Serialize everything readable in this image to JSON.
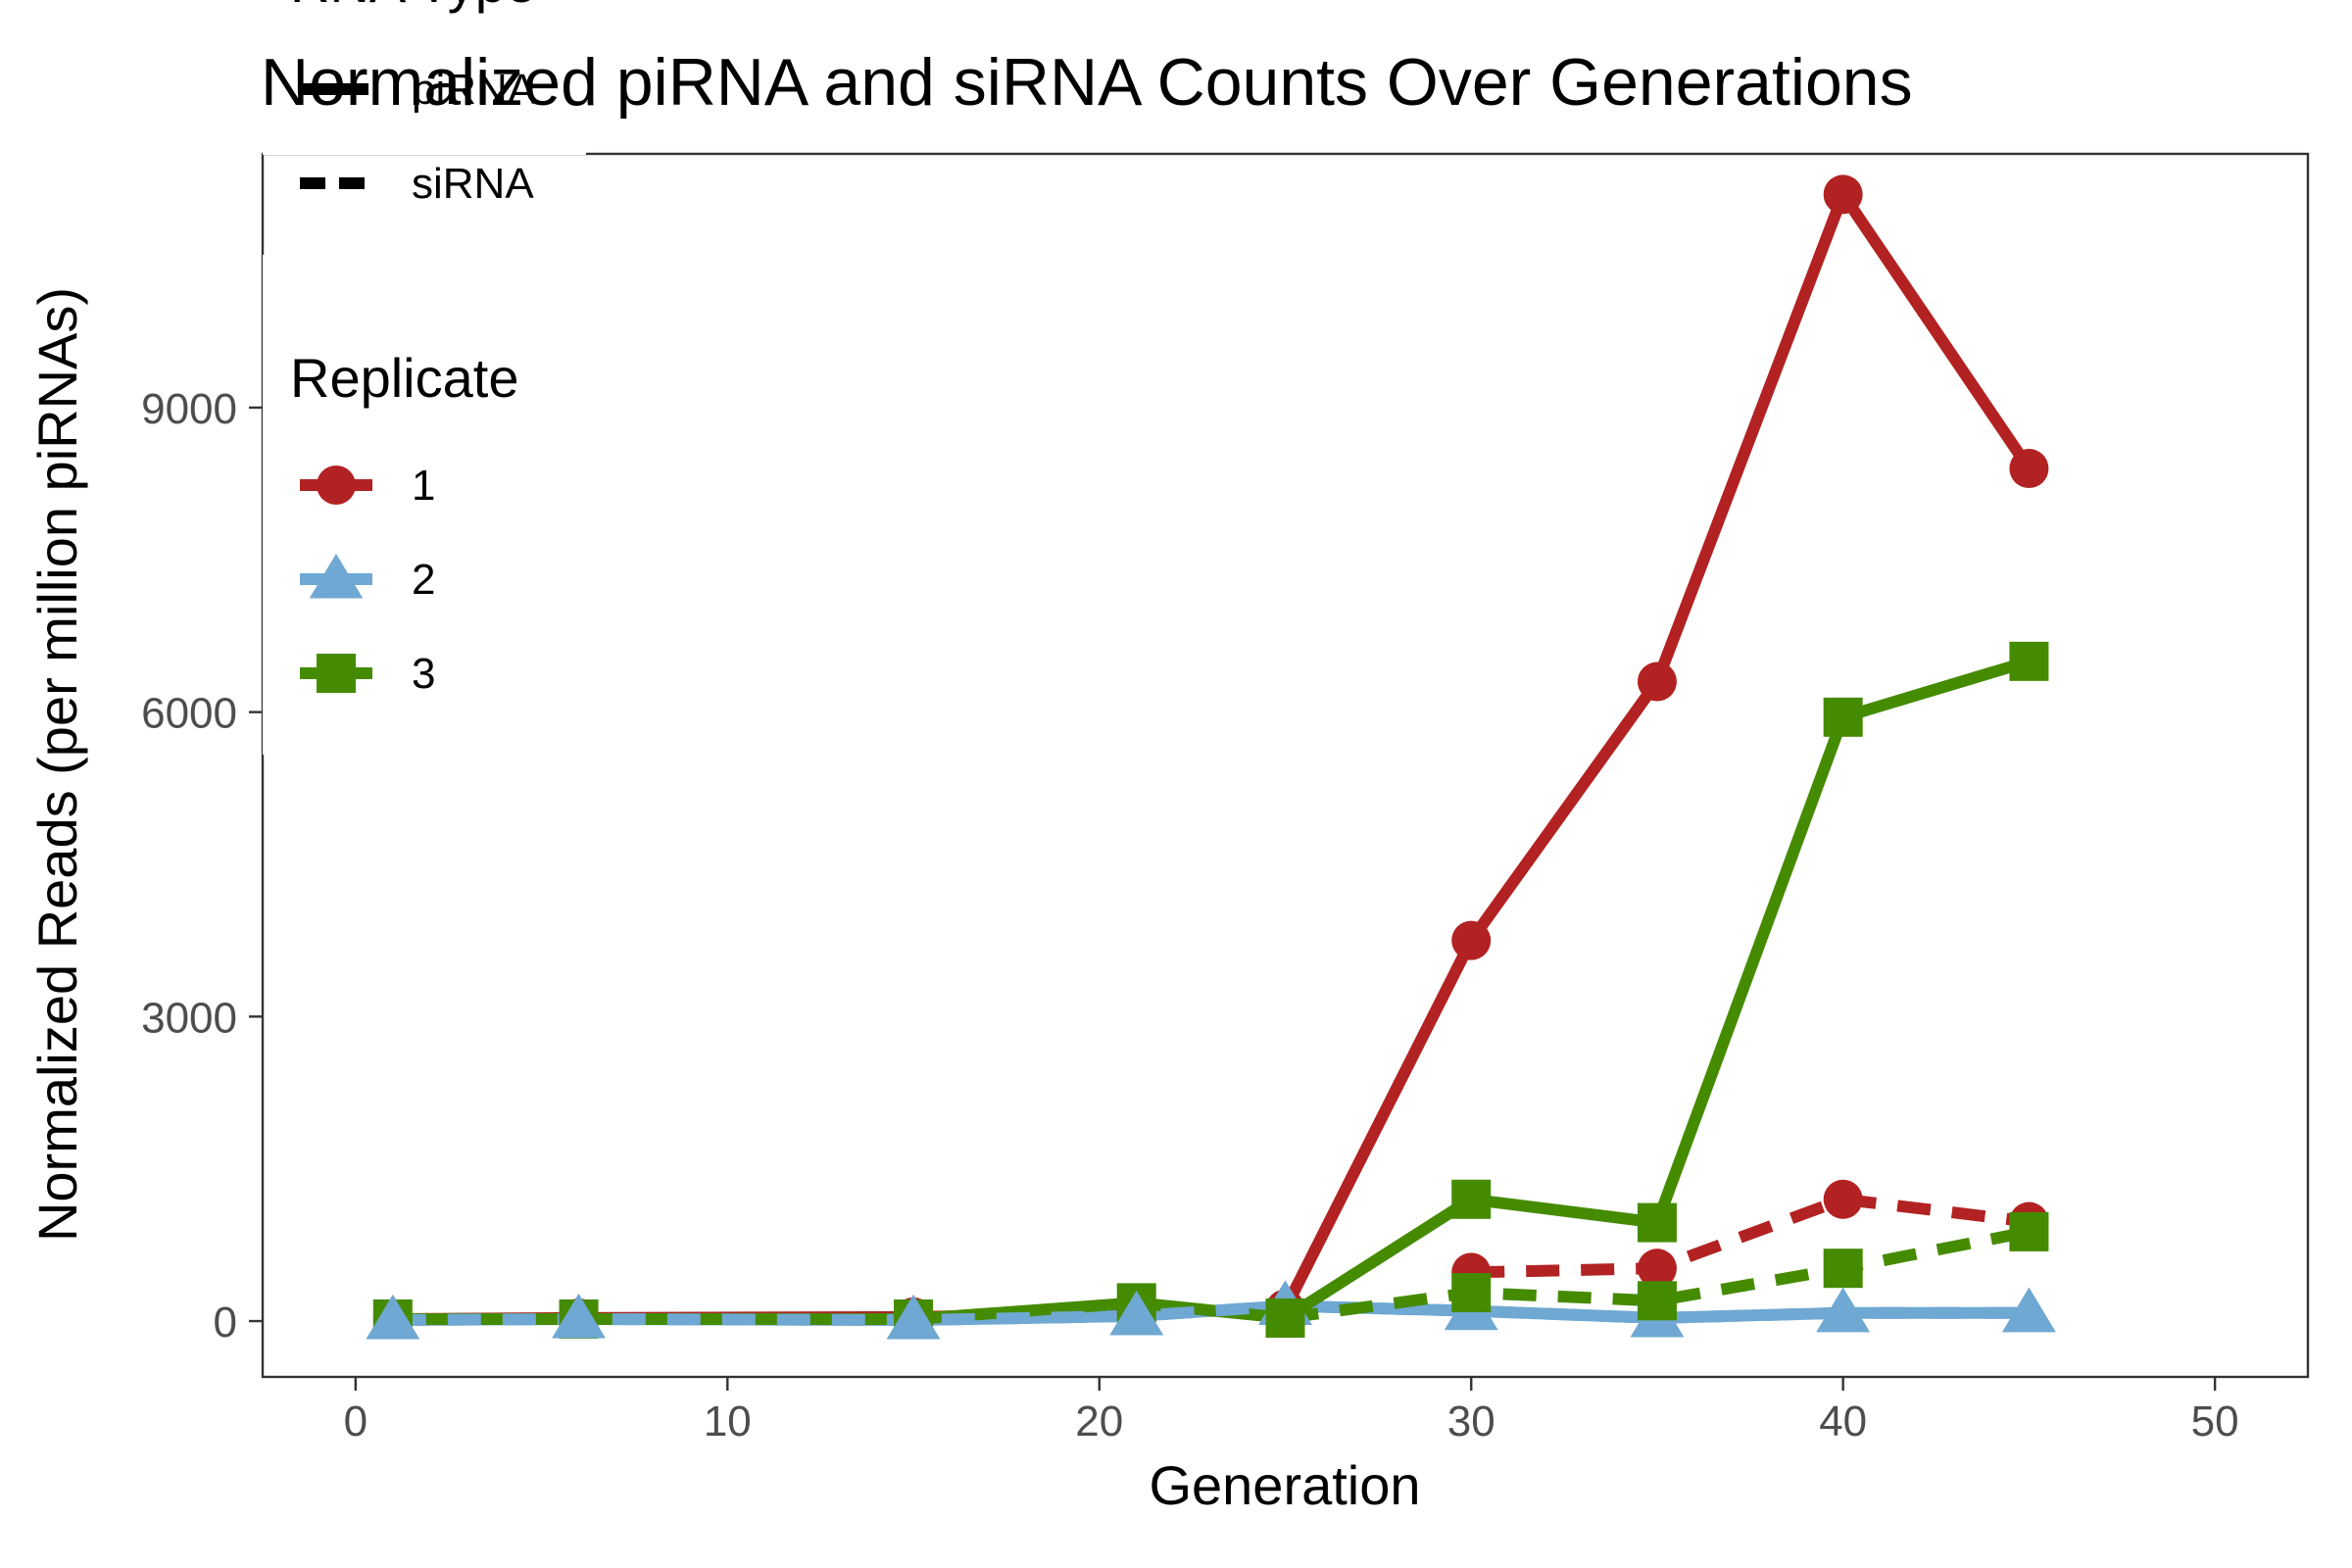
{
  "chart_data": {
    "type": "line",
    "title": "Normalized piRNA and siRNA Counts Over Generations",
    "xlabel": "Generation",
    "ylabel": "Normalized Reads (per million piRNAs)",
    "xlim": [
      -2.5,
      52.5
    ],
    "ylim": [
      -550,
      11500
    ],
    "x_ticks": [
      0,
      10,
      20,
      30,
      40,
      50
    ],
    "y_ticks": [
      0,
      3000,
      6000,
      9000
    ],
    "grid": false,
    "legend": {
      "placement": "top-left",
      "groups": [
        {
          "title": "RNA Type",
          "entries": [
            "piRNA",
            "siRNA"
          ]
        },
        {
          "title": "Replicate",
          "entries": [
            "1",
            "2",
            "3"
          ]
        }
      ]
    },
    "colors": {
      "1": "#b22222",
      "2": "#6fa8d2",
      "3": "#458b00"
    },
    "series": [
      {
        "name": "1",
        "rna_type": "piRNA",
        "x": [
          1,
          6,
          15,
          21,
          25,
          30,
          35,
          40,
          45
        ],
        "y": [
          20,
          30,
          40,
          80,
          120,
          3750,
          6300,
          11100,
          8400
        ]
      },
      {
        "name": "2",
        "rna_type": "piRNA",
        "x": [
          1,
          6,
          15,
          21,
          25,
          30,
          35,
          40,
          45
        ],
        "y": [
          10,
          20,
          10,
          50,
          150,
          100,
          30,
          80,
          80
        ]
      },
      {
        "name": "3",
        "rna_type": "piRNA",
        "x": [
          1,
          6,
          15,
          21,
          25,
          30,
          35,
          40,
          45
        ],
        "y": [
          20,
          20,
          20,
          180,
          30,
          1200,
          970,
          5950,
          6500
        ]
      },
      {
        "name": "1",
        "rna_type": "siRNA",
        "x": [
          30,
          35,
          40,
          45
        ],
        "y": [
          480,
          520,
          1200,
          980
        ]
      },
      {
        "name": "2",
        "rna_type": "siRNA",
        "x": [
          1,
          6,
          15,
          21,
          25,
          30,
          35,
          40,
          45
        ],
        "y": [
          10,
          20,
          10,
          50,
          150,
          100,
          30,
          80,
          80
        ]
      },
      {
        "name": "3",
        "rna_type": "siRNA",
        "x": [
          25,
          30,
          35,
          40,
          45
        ],
        "y": [
          30,
          280,
          200,
          520,
          880
        ]
      }
    ]
  }
}
